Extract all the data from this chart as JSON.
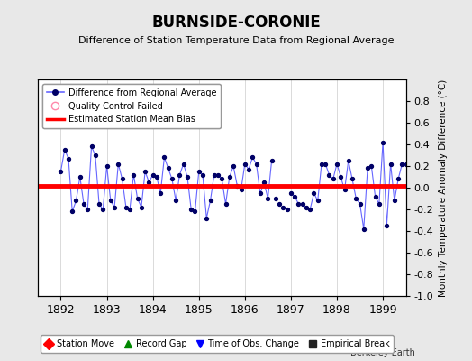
{
  "title": "BURNSIDE-CORONIE",
  "subtitle": "Difference of Station Temperature Data from Regional Average",
  "ylabel_right": "Monthly Temperature Anomaly Difference (°C)",
  "xlim": [
    1891.5,
    1899.5
  ],
  "ylim": [
    -1.0,
    1.0
  ],
  "yticks": [
    -1.0,
    -0.8,
    -0.6,
    -0.4,
    -0.2,
    0.0,
    0.2,
    0.4,
    0.6,
    0.8
  ],
  "xticks": [
    1892,
    1893,
    1894,
    1895,
    1896,
    1897,
    1898,
    1899
  ],
  "bias_value": 0.02,
  "background_color": "#e8e8e8",
  "plot_bg_color": "#ffffff",
  "line_color": "#6666ff",
  "dot_color": "#000066",
  "bias_color": "#ff0000",
  "data_x": [
    1892.0,
    1892.083,
    1892.167,
    1892.25,
    1892.333,
    1892.417,
    1892.5,
    1892.583,
    1892.667,
    1892.75,
    1892.833,
    1892.917,
    1893.0,
    1893.083,
    1893.167,
    1893.25,
    1893.333,
    1893.417,
    1893.5,
    1893.583,
    1893.667,
    1893.75,
    1893.833,
    1893.917,
    1894.0,
    1894.083,
    1894.167,
    1894.25,
    1894.333,
    1894.417,
    1894.5,
    1894.583,
    1894.667,
    1894.75,
    1894.833,
    1894.917,
    1895.0,
    1895.083,
    1895.167,
    1895.25,
    1895.333,
    1895.417,
    1895.5,
    1895.583,
    1895.667,
    1895.75,
    1895.833,
    1895.917,
    1896.0,
    1896.083,
    1896.167,
    1896.25,
    1896.333,
    1896.417,
    1896.5,
    1896.583,
    1896.667,
    1896.75,
    1896.833,
    1896.917,
    1897.0,
    1897.083,
    1897.167,
    1897.25,
    1897.333,
    1897.417,
    1897.5,
    1897.583,
    1897.667,
    1897.75,
    1897.833,
    1897.917,
    1898.0,
    1898.083,
    1898.167,
    1898.25,
    1898.333,
    1898.417,
    1898.5,
    1898.583,
    1898.667,
    1898.75,
    1898.833,
    1898.917,
    1899.0,
    1899.083,
    1899.167,
    1899.25,
    1899.333,
    1899.417,
    1899.5
  ],
  "data_y": [
    0.15,
    0.35,
    0.27,
    -0.22,
    -0.12,
    0.1,
    -0.15,
    -0.2,
    0.38,
    0.3,
    -0.15,
    -0.2,
    0.2,
    -0.12,
    -0.18,
    0.22,
    0.08,
    -0.18,
    -0.2,
    0.12,
    -0.1,
    -0.18,
    0.15,
    0.05,
    0.12,
    0.1,
    -0.05,
    0.28,
    0.18,
    0.08,
    -0.12,
    0.12,
    0.22,
    0.1,
    -0.2,
    -0.22,
    0.15,
    0.12,
    -0.28,
    -0.12,
    0.12,
    0.12,
    0.08,
    -0.15,
    0.1,
    0.2,
    0.02,
    -0.02,
    0.22,
    0.17,
    0.28,
    0.22,
    -0.05,
    0.05,
    -0.1,
    0.25,
    -0.1,
    -0.15,
    -0.18,
    -0.2,
    -0.05,
    -0.08,
    -0.15,
    -0.15,
    -0.18,
    -0.2,
    -0.05,
    -0.12,
    0.22,
    0.22,
    0.12,
    0.08,
    0.22,
    0.1,
    -0.02,
    0.25,
    0.08,
    -0.1,
    -0.15,
    -0.38,
    0.18,
    0.2,
    -0.08,
    -0.15,
    0.42,
    -0.35,
    0.22,
    -0.12,
    0.08,
    0.22,
    0.22
  ],
  "disconnected_segments": [
    [
      1896.583,
      1897.0
    ]
  ],
  "footer_text": "Berkeley Earth",
  "legend1_items": [
    {
      "label": "Difference from Regional Average",
      "color": "#6666ff",
      "marker": "o",
      "linestyle": "-"
    },
    {
      "label": "Quality Control Failed",
      "color": "#ff88aa",
      "marker": "o",
      "linestyle": "none"
    },
    {
      "label": "Estimated Station Mean Bias",
      "color": "#ff0000",
      "marker": "none",
      "linestyle": "-"
    }
  ],
  "legend2_items": [
    {
      "label": "Station Move",
      "color": "#ff0000",
      "marker": "D"
    },
    {
      "label": "Record Gap",
      "color": "#008800",
      "marker": "^"
    },
    {
      "label": "Time of Obs. Change",
      "color": "#0000ff",
      "marker": "v"
    },
    {
      "label": "Empirical Break",
      "color": "#222222",
      "marker": "s"
    }
  ]
}
